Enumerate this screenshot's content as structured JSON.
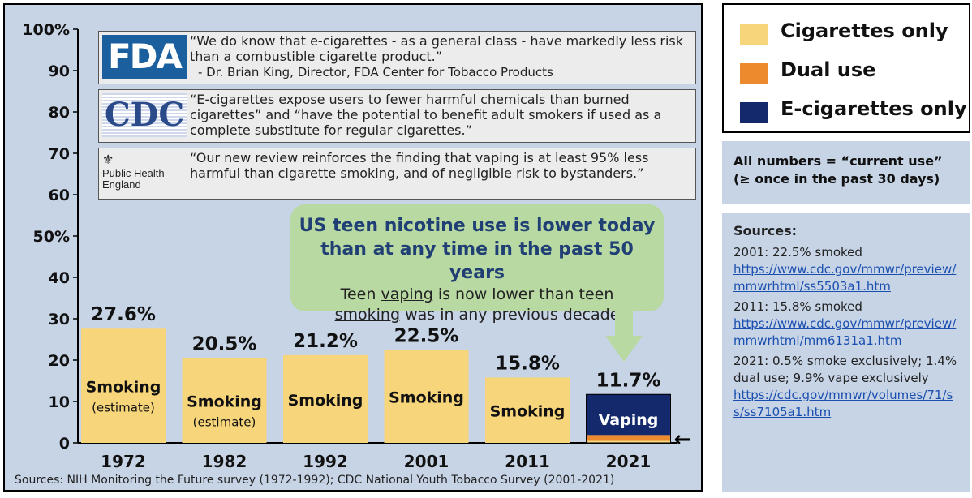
{
  "chart_data": {
    "type": "bar",
    "categories": [
      "1972",
      "1982",
      "1992",
      "2001",
      "2011",
      "2021"
    ],
    "values": [
      27.6,
      20.5,
      21.2,
      22.5,
      15.8,
      11.7
    ],
    "value_labels": [
      "27.6%",
      "20.5%",
      "21.2%",
      "22.5%",
      "15.8%",
      "11.7%"
    ],
    "bar_labels": [
      "Smoking",
      "Smoking",
      "Smoking",
      "Smoking",
      "Smoking",
      "Vaping"
    ],
    "bar_sublabels": [
      "(estimate)",
      "(estimate)",
      "",
      "",
      "",
      ""
    ],
    "stack_2021": {
      "cigarettes_only": 0.5,
      "dual_use": 1.4,
      "e_cigarettes_only": 9.9
    },
    "ylim": [
      0,
      100
    ],
    "yticks": [
      0,
      10,
      20,
      30,
      40,
      50,
      60,
      70,
      80,
      90,
      100
    ],
    "ytick_labels": [
      "0",
      "10",
      "20",
      "30",
      "40",
      "50%",
      "60",
      "70",
      "80",
      "90",
      "100%"
    ],
    "colors": {
      "cigarettes": "#f7d57a",
      "dual": "#ee8a2e",
      "ecig": "#13296b"
    },
    "arrow_glyph": "←"
  },
  "quotes": [
    {
      "logo": "FDA",
      "text": "“We do know that e-cigarettes - as a general class - have markedly less risk than a combustible cigarette product.”",
      "attribution": "- Dr. Brian King, Director, FDA Center for Tobacco Products"
    },
    {
      "logo": "CDC",
      "text": "“E-cigarettes expose users to fewer harmful chemicals than burned cigarettes” and “have the potential to benefit adult smokers if used as a complete substitute for regular cigarettes.”"
    },
    {
      "logo_line1": "Public Health",
      "logo_line2": "England",
      "crest": "⚜",
      "text": "“Our new review reinforces the finding that vaping is at least 95% less harmful than cigarette smoking, and of negligible risk to bystanders.”"
    }
  ],
  "callout": {
    "headline_1": "US teen nicotine use is lower today",
    "headline_2": "than at any time in the past 50 years",
    "body_1_pre": "Teen ",
    "body_1_u": "vaping",
    "body_1_post": " is now lower than teen",
    "body_2_u": "smoking",
    "body_2_post": " was in any previous decade"
  },
  "source_note": "Sources:  NIH Monitoring the Future survey (1972-1992); CDC National Youth Tobacco Survey (2001-2021)",
  "legend": [
    {
      "label": "Cigarettes only",
      "color": "#f7d57a"
    },
    {
      "label": "Dual use",
      "color": "#ee8a2e"
    },
    {
      "label": "E-cigarettes only",
      "color": "#13296b"
    }
  ],
  "definition": {
    "line1": "All numbers = “current use”",
    "line2": "(≥ once in the past 30 days)"
  },
  "sources": {
    "title": "Sources:",
    "items": [
      {
        "text": "2001:  22.5% smoked",
        "link": "https://www.cdc.gov/mmwr/preview/mmwrhtml/ss5503a1.htm"
      },
      {
        "text": "2011: 15.8% smoked",
        "link": "https://www.cdc.gov/mmwr/preview/mmwrhtml/mm6131a1.htm"
      },
      {
        "text": "2021:  0.5% smoke exclusively; 1.4% dual use; 9.9% vape exclusively",
        "link": "https://cdc.gov/mmwr/volumes/71/ss/ss7105a1.htm"
      }
    ]
  }
}
